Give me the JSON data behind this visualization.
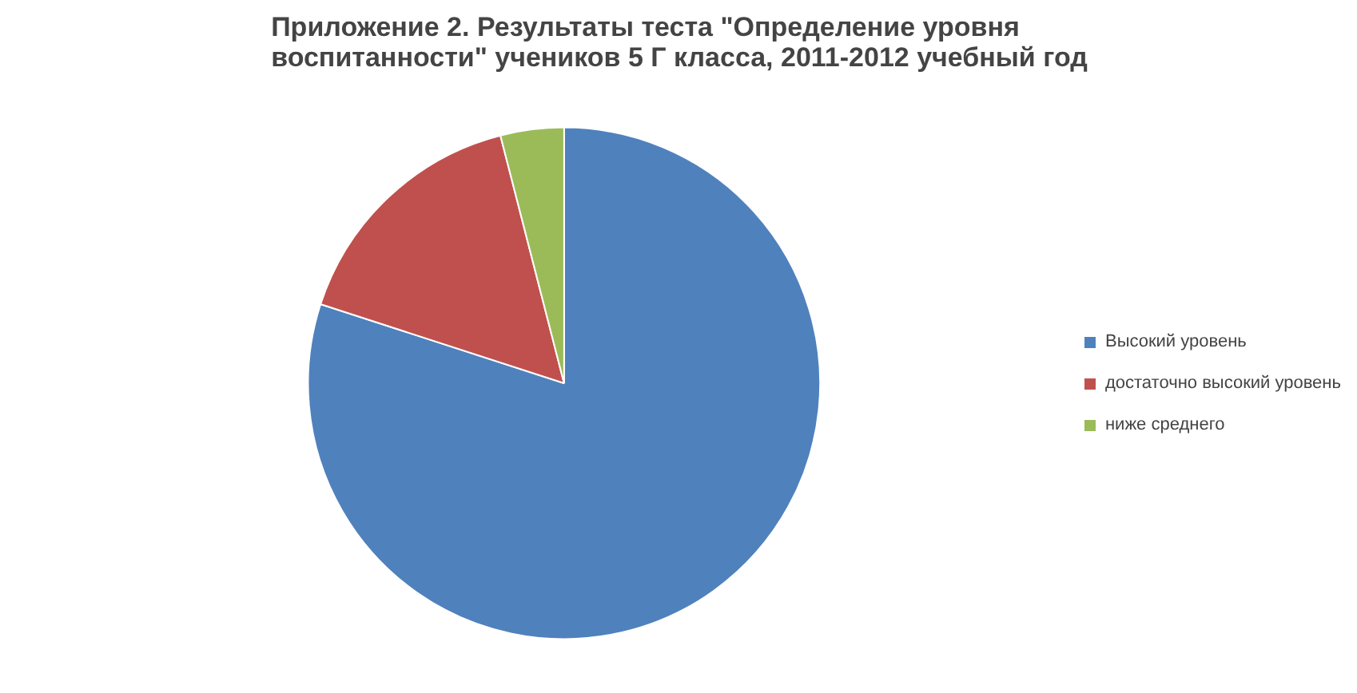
{
  "chart_data": {
    "type": "pie",
    "title": "Приложение 2. Результаты теста \"Определение уровня воспитанности\" учеников 5 Г класса, 2011-2012 учебный год",
    "categories": [
      "Высокий уровень",
      "достаточно высокий уровень",
      "ниже среднего"
    ],
    "values": [
      80,
      16,
      4
    ],
    "colors": [
      "#4f81bd",
      "#c0504d",
      "#9bbb59"
    ],
    "legend": "right"
  }
}
